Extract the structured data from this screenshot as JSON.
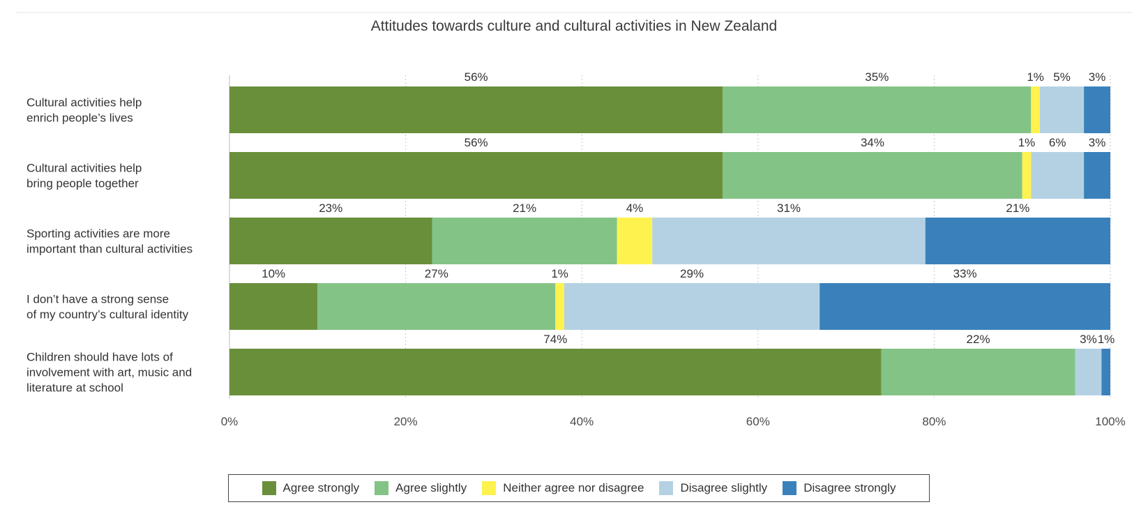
{
  "chart_data": {
    "type": "bar",
    "orientation": "horizontal",
    "stacked": true,
    "title": "Attitudes towards culture and cultural activities in New Zealand",
    "categories": [
      [
        "Cultural activities help",
        "enrich people’s lives"
      ],
      [
        "Cultural activities help",
        "bring people together"
      ],
      [
        "Sporting activities are more",
        "important than cultural activities"
      ],
      [
        "I don’t have a strong sense",
        "of my country’s cultural identity"
      ],
      [
        "Children should have lots of",
        "involvement with art, music and",
        "literature at school"
      ]
    ],
    "series": [
      {
        "name": "Agree strongly",
        "color": "#6a8f3b",
        "values": [
          56,
          56,
          23,
          10,
          74
        ]
      },
      {
        "name": "Agree slightly",
        "color": "#84c386",
        "values": [
          35,
          34,
          21,
          27,
          22
        ]
      },
      {
        "name": "Neither agree nor disagree",
        "color": "#fef24f",
        "values": [
          1,
          1,
          4,
          1,
          0
        ]
      },
      {
        "name": "Disagree slightly",
        "color": "#b4d1e3",
        "values": [
          5,
          6,
          31,
          29,
          3
        ]
      },
      {
        "name": "Disagree strongly",
        "color": "#3a81bc",
        "values": [
          3,
          3,
          21,
          33,
          1
        ]
      }
    ],
    "data_labels": [
      [
        "56%",
        "35%",
        "1%",
        "5%",
        "3%"
      ],
      [
        "56%",
        "34%",
        "1%",
        "6%",
        "3%"
      ],
      [
        "23%",
        "21%",
        "4%",
        "31%",
        "21%"
      ],
      [
        "10%",
        "27%",
        "1%",
        "29%",
        "33%"
      ],
      [
        "74%",
        "22%",
        "",
        "3%",
        "1%"
      ]
    ],
    "x_ticks": [
      "0%",
      "20%",
      "40%",
      "60%",
      "80%",
      "100%"
    ],
    "xlim": [
      0,
      100
    ],
    "grid": true,
    "legend_position": "bottom"
  }
}
